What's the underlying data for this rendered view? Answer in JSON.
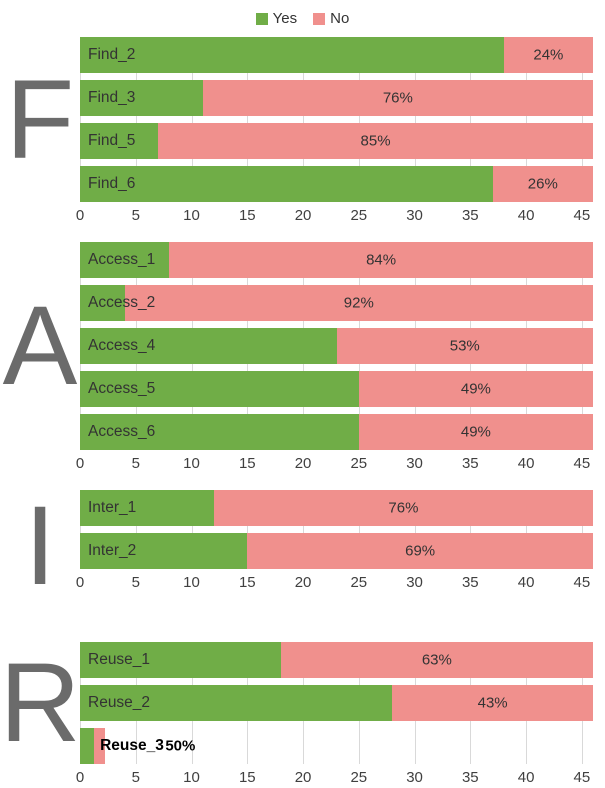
{
  "legend": {
    "yes": "Yes",
    "no": "No"
  },
  "colors": {
    "yes": "#70AD47",
    "no": "#F0908D",
    "grid": "#D9D9D9",
    "letter": "#6B6B6B",
    "bar_label_text": "#333333",
    "axis_text": "#404040"
  },
  "chart_data": {
    "type": "bar",
    "orientation": "horizontal",
    "stacked": true,
    "title": "",
    "legend": [
      "Yes",
      "No"
    ],
    "axis": {
      "min": 0,
      "max": 45,
      "tick_step": 5,
      "ticks": [
        0,
        5,
        10,
        15,
        20,
        25,
        30,
        35,
        40,
        45
      ],
      "bar_total_units": 46,
      "grid": true
    },
    "sections": [
      {
        "letter": "F",
        "rows": [
          {
            "label": "Find_2",
            "yes": 38,
            "no": 8,
            "pct": "24%"
          },
          {
            "label": "Find_3",
            "yes": 11,
            "no": 35,
            "pct": "76%"
          },
          {
            "label": "Find_5",
            "yes": 7,
            "no": 39,
            "pct": "85%"
          },
          {
            "label": "Find_6",
            "yes": 37,
            "no": 9,
            "pct": "26%"
          }
        ]
      },
      {
        "letter": "A",
        "rows": [
          {
            "label": "Access_1",
            "yes": 8,
            "no": 38,
            "pct": "84%"
          },
          {
            "label": "Access_2",
            "yes": 4,
            "no": 42,
            "pct": "92%"
          },
          {
            "label": "Access_4",
            "yes": 23,
            "no": 23,
            "pct": "53%"
          },
          {
            "label": "Access_5",
            "yes": 25,
            "no": 21,
            "pct": "49%"
          },
          {
            "label": "Access_6",
            "yes": 25,
            "no": 21,
            "pct": "49%"
          }
        ]
      },
      {
        "letter": "I",
        "rows": [
          {
            "label": "Inter_1",
            "yes": 12,
            "no": 34,
            "pct": "76%"
          },
          {
            "label": "Inter_2",
            "yes": 15,
            "no": 31,
            "pct": "69%"
          }
        ]
      },
      {
        "letter": "R",
        "rows": [
          {
            "label": "Reuse_1",
            "yes": 18,
            "no": 28,
            "pct": "63%"
          },
          {
            "label": "Reuse_2",
            "yes": 28,
            "no": 18,
            "pct": "43%"
          },
          {
            "label": "Reuse_3",
            "yes": 1.3,
            "no": 0.9,
            "pct": "50%",
            "label_x_units": 1.8,
            "pct_x_units": 9,
            "label_bold": true
          }
        ]
      }
    ]
  }
}
